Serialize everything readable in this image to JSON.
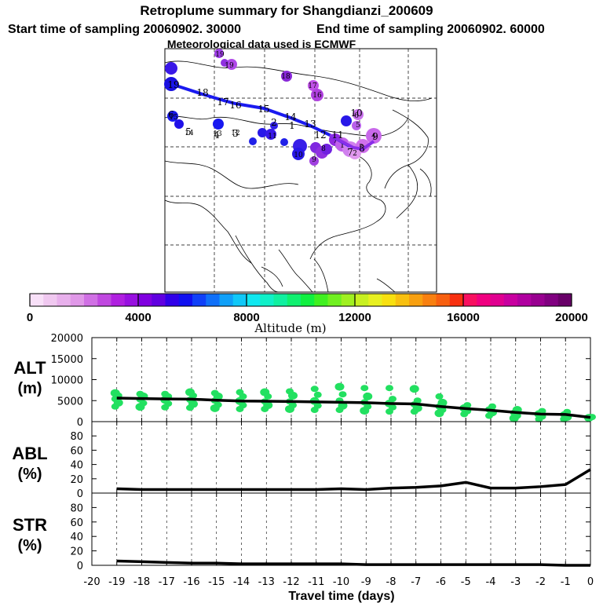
{
  "header": {
    "title": "Retroplume summary for Shangdianzi_200609",
    "start_label": "Start time of sampling 20060902. 30000",
    "end_label": "End time of sampling 20060902. 60000",
    "met_label": "Meteorological data used is ECMWF"
  },
  "colorbar": {
    "title": "Altitude (m)",
    "ticks": [
      "0",
      "4000",
      "8000",
      "12000",
      "16000",
      "20000"
    ],
    "colors": [
      "#f8e0f8",
      "#f0c8f0",
      "#e8b0ec",
      "#e098e8",
      "#d070e4",
      "#c048e0",
      "#b020e0",
      "#9810e0",
      "#8000e0",
      "#6000e0",
      "#3000e8",
      "#1010f0",
      "#1040f8",
      "#1070f8",
      "#10a0f8",
      "#10c8f8",
      "#10e8f0",
      "#10f0c8",
      "#10f0a0",
      "#10f070",
      "#10f040",
      "#40f020",
      "#70f020",
      "#a0f020",
      "#c8f020",
      "#e8f020",
      "#f8e010",
      "#f8c010",
      "#f8a010",
      "#f88010",
      "#f86010",
      "#f83010",
      "#f81060",
      "#f00080",
      "#e00090",
      "#c800a0",
      "#b000a0",
      "#980090",
      "#800080",
      "#680068"
    ]
  },
  "map": {
    "trajectory_labels": [
      "19",
      "18",
      "17",
      "16",
      "15",
      "14",
      "13",
      "12",
      "11",
      "10",
      "9",
      "8",
      "7",
      "6",
      "5",
      "4",
      "3",
      "2",
      "1"
    ],
    "cluster_labels": [
      "19",
      "19",
      "18",
      "17",
      "16",
      "15",
      "14",
      "13",
      "12",
      "11",
      "10",
      "9",
      "8",
      "7",
      "6",
      "5",
      "4",
      "3",
      "2",
      "1"
    ]
  },
  "chart_data": [
    {
      "type": "line",
      "panel": "ALT",
      "title": "ALT",
      "ylabel": "(m)",
      "ylim": [
        0,
        20000
      ],
      "yticks": [
        "0",
        "5000",
        "10000",
        "15000",
        "20000"
      ],
      "x": [
        -19,
        -18,
        -17,
        -16,
        -15,
        -14,
        -13,
        -12,
        -11,
        -10,
        -9,
        -8,
        -7,
        -6,
        -5,
        -4,
        -3,
        -2,
        -1,
        0
      ],
      "series": [
        {
          "name": "mean altitude",
          "values": [
            5600,
            5500,
            5400,
            5350,
            5100,
            4900,
            4850,
            4800,
            4700,
            4600,
            4500,
            4300,
            4200,
            3600,
            3100,
            2700,
            2200,
            1800,
            1700,
            1000
          ]
        }
      ],
      "scatter_spread": [
        {
          "x": -19,
          "ys": [
            3600,
            4500,
            5400,
            6200,
            6800
          ]
        },
        {
          "x": -18,
          "ys": [
            3500,
            4400,
            5300,
            6000,
            6600
          ]
        },
        {
          "x": -17,
          "ys": [
            3400,
            4300,
            5200,
            6000,
            6600
          ]
        },
        {
          "x": -16,
          "ys": [
            3300,
            4200,
            5200,
            6200,
            7000
          ]
        },
        {
          "x": -15,
          "ys": [
            3200,
            4000,
            5000,
            6000,
            6800
          ]
        },
        {
          "x": -14,
          "ys": [
            3000,
            3900,
            4900,
            6000,
            7000
          ]
        },
        {
          "x": -13,
          "ys": [
            3000,
            3900,
            4800,
            6000,
            7000
          ]
        },
        {
          "x": -12,
          "ys": [
            3000,
            3900,
            4800,
            6200,
            7200
          ]
        },
        {
          "x": -11,
          "ys": [
            2800,
            3800,
            4900,
            6400,
            7800
          ]
        },
        {
          "x": -10,
          "ys": [
            2800,
            3800,
            5000,
            6500,
            8300
          ]
        },
        {
          "x": -9,
          "ys": [
            2600,
            3600,
            4600,
            6000,
            8000
          ]
        },
        {
          "x": -8,
          "ys": [
            2400,
            3400,
            4300,
            5400,
            8000
          ]
        },
        {
          "x": -7,
          "ys": [
            2400,
            3200,
            4100,
            5000,
            7800
          ]
        },
        {
          "x": -6,
          "ys": [
            2000,
            2800,
            3600,
            4500,
            6000
          ]
        },
        {
          "x": -5,
          "ys": [
            1800,
            2500,
            3200,
            3900
          ]
        },
        {
          "x": -4,
          "ys": [
            1400,
            2200,
            2900,
            3600
          ]
        },
        {
          "x": -3,
          "ys": [
            800,
            1400,
            2100,
            2800
          ]
        },
        {
          "x": -2,
          "ys": [
            600,
            1200,
            1800,
            2500
          ]
        },
        {
          "x": -1,
          "ys": [
            600,
            1100,
            1700,
            2300
          ]
        },
        {
          "x": 0,
          "ys": [
            900,
            1100
          ]
        }
      ]
    },
    {
      "type": "line",
      "panel": "ABL",
      "title": "ABL",
      "ylabel": "(%)",
      "ylim": [
        0,
        100
      ],
      "yticks": [
        "0",
        "20",
        "40",
        "60",
        "80"
      ],
      "x": [
        -19,
        -18,
        -17,
        -16,
        -15,
        -14,
        -13,
        -12,
        -11,
        -10,
        -9,
        -8,
        -7,
        -6,
        -5,
        -4,
        -3,
        -2,
        -1,
        0
      ],
      "series": [
        {
          "name": "ABL fraction",
          "values": [
            6,
            5,
            5,
            5,
            5,
            5,
            5,
            5,
            5,
            6,
            5,
            7,
            8,
            10,
            15,
            7,
            7,
            9,
            12,
            33
          ]
        }
      ]
    },
    {
      "type": "line",
      "panel": "STR",
      "title": "STR",
      "ylabel": "(%)",
      "ylim": [
        0,
        100
      ],
      "yticks": [
        "0",
        "20",
        "40",
        "60",
        "80"
      ],
      "xlabel": "Travel time (days)",
      "xticks": [
        "-20",
        "-19",
        "-18",
        "-17",
        "-16",
        "-15",
        "-14",
        "-13",
        "-12",
        "-11",
        "-10",
        "-9",
        "-8",
        "-7",
        "-6",
        "-5",
        "-4",
        "-3",
        "-2",
        "-1",
        "0"
      ],
      "x": [
        -19,
        -18,
        -17,
        -16,
        -15,
        -14,
        -13,
        -12,
        -11,
        -10,
        -9,
        -8,
        -7,
        -6,
        -5,
        -4,
        -3,
        -2,
        -1,
        0
      ],
      "series": [
        {
          "name": "STR fraction",
          "values": [
            6,
            5,
            4,
            3,
            3,
            2,
            2,
            2,
            2,
            2,
            1,
            1,
            1,
            1,
            1,
            1,
            1,
            1,
            0,
            0
          ]
        }
      ]
    }
  ]
}
